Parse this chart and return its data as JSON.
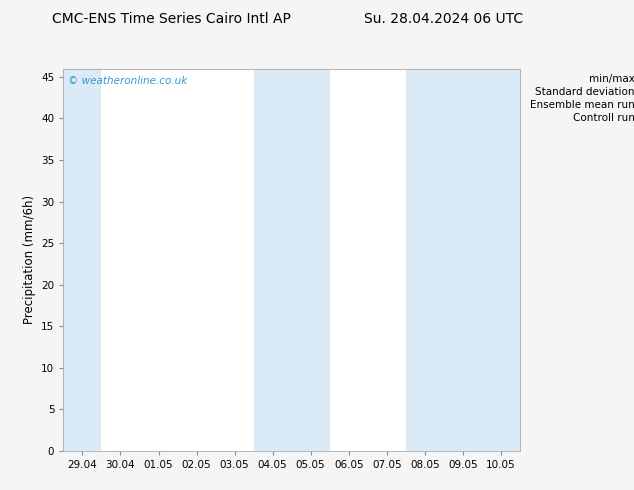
{
  "title_left": "CMC-ENS Time Series Cairo Intl AP",
  "title_right": "Su. 28.04.2024 06 UTC",
  "ylabel": "Precipitation (mm/6h)",
  "ylim": [
    0,
    46
  ],
  "yticks": [
    0,
    5,
    10,
    15,
    20,
    25,
    30,
    35,
    40,
    45
  ],
  "xtick_labels": [
    "29.04",
    "30.04",
    "01.05",
    "02.05",
    "03.05",
    "04.05",
    "05.05",
    "06.05",
    "07.05",
    "08.05",
    "09.05",
    "10.05"
  ],
  "background_color": "#f5f5f5",
  "plot_bg_color": "#ffffff",
  "light_blue_color": "#daeaf7",
  "watermark_text": "© weatheronline.co.uk",
  "watermark_color": "#3399cc",
  "legend_labels": [
    "min/max",
    "Standard deviation",
    "Ensemble mean run",
    "Controll run"
  ],
  "shaded_band_indices": [
    0,
    5,
    6,
    9,
    10,
    11
  ],
  "num_xticks": 12,
  "title_fontsize": 10,
  "tick_fontsize": 7.5,
  "ylabel_fontsize": 8.5
}
